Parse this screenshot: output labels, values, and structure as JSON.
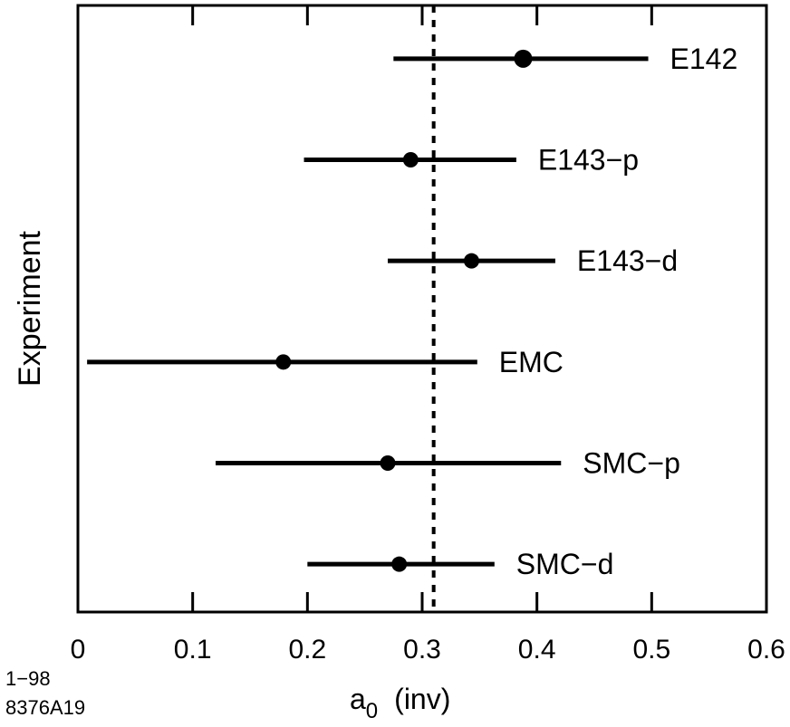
{
  "chart_data": {
    "type": "scatter",
    "title": "",
    "xlabel_main": "a",
    "xlabel_sub": "0",
    "xlabel_suffix": "(inv)",
    "ylabel": "Experiment",
    "xlim": [
      0,
      0.6
    ],
    "x_ticks": [
      0,
      0.1,
      0.2,
      0.3,
      0.4,
      0.5,
      0.6
    ],
    "x_tick_labels": [
      "0",
      "0.1",
      "0.2",
      "0.3",
      "0.4",
      "0.5",
      "0.6"
    ],
    "reference_line_x": 0.31,
    "points": [
      {
        "label": "E142",
        "value": 0.388,
        "low": 0.275,
        "high": 0.497
      },
      {
        "label": "E143−p",
        "value": 0.29,
        "low": 0.197,
        "high": 0.382
      },
      {
        "label": "E143−d",
        "value": 0.343,
        "low": 0.27,
        "high": 0.416
      },
      {
        "label": "EMC",
        "value": 0.179,
        "low": 0.008,
        "high": 0.348
      },
      {
        "label": "SMC−p",
        "value": 0.27,
        "low": 0.12,
        "high": 0.421
      },
      {
        "label": "SMC−d",
        "value": 0.28,
        "low": 0.2,
        "high": 0.363
      }
    ]
  },
  "footer": {
    "line1": "1−98",
    "line2": "8376A19"
  }
}
